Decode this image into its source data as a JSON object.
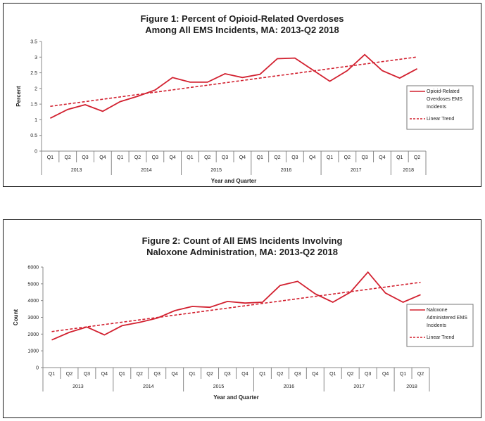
{
  "chart_data": [
    {
      "type": "line",
      "title_line1": "Figure 1: Percent of Opioid-Related Overdoses",
      "title_line2": "Among All EMS Incidents, MA: 2013-Q2 2018",
      "xlabel": "Year and Quarter",
      "ylabel": "Percent",
      "ylim": [
        0,
        3.5
      ],
      "yticks": [
        "0",
        "0.5",
        "1",
        "1.5",
        "2",
        "2.5",
        "3",
        "3.5"
      ],
      "ytick_values": [
        0,
        0.5,
        1,
        1.5,
        2,
        2.5,
        3,
        3.5
      ],
      "categories": [
        "Q1",
        "Q2",
        "Q3",
        "Q4",
        "Q1",
        "Q2",
        "Q3",
        "Q4",
        "Q1",
        "Q2",
        "Q3",
        "Q4",
        "Q1",
        "Q2",
        "Q3",
        "Q4",
        "Q1",
        "Q2",
        "Q3",
        "Q4",
        "Q1",
        "Q2"
      ],
      "years": [
        "2013",
        "2014",
        "2015",
        "2016",
        "2017",
        "2018"
      ],
      "series": [
        {
          "name": "Opioid-Related Overdoses EMS Incidents",
          "legend_lines": [
            "Opioid-Related",
            "Overdoses EMS",
            "Incidents"
          ],
          "style": "solid",
          "color": "#d2202f",
          "values": [
            1.05,
            1.33,
            1.48,
            1.27,
            1.58,
            1.75,
            1.95,
            2.35,
            2.2,
            2.2,
            2.47,
            2.35,
            2.45,
            2.95,
            2.97,
            2.6,
            2.23,
            2.57,
            3.08,
            2.57,
            2.33,
            2.63
          ]
        },
        {
          "name": "Linear Trend",
          "legend_lines": [
            "Linear Trend"
          ],
          "style": "dashed",
          "color": "#d2202f",
          "values": [
            1.43,
            1.505,
            1.58,
            1.655,
            1.73,
            1.805,
            1.88,
            1.955,
            2.03,
            2.105,
            2.18,
            2.255,
            2.33,
            2.405,
            2.48,
            2.555,
            2.63,
            2.705,
            2.78,
            2.855,
            2.93,
            3.005
          ]
        }
      ]
    },
    {
      "type": "line",
      "title_line1": "Figure 2: Count of All EMS Incidents Involving",
      "title_line2": "Naloxone Administration, MA: 2013-Q2 2018",
      "xlabel": "Year and Quarter",
      "ylabel": "Count",
      "ylim": [
        0,
        6000
      ],
      "yticks": [
        "0",
        "1000",
        "2000",
        "3000",
        "4000",
        "5000",
        "6000"
      ],
      "ytick_values": [
        0,
        1000,
        2000,
        3000,
        4000,
        5000,
        6000
      ],
      "categories": [
        "Q1",
        "Q2",
        "Q3",
        "Q4",
        "Q1",
        "Q2",
        "Q3",
        "Q4",
        "Q1",
        "Q2",
        "Q3",
        "Q4",
        "Q1",
        "Q2",
        "Q3",
        "Q4",
        "Q1",
        "Q2",
        "Q3",
        "Q4",
        "Q1",
        "Q2"
      ],
      "years": [
        "2013",
        "2014",
        "2015",
        "2016",
        "2017",
        "2018"
      ],
      "series": [
        {
          "name": "Naloxone Administered EMS Incidents",
          "legend_lines": [
            "Naloxone",
            "Administered EMS",
            "Incidents"
          ],
          "style": "solid",
          "color": "#d2202f",
          "values": [
            1650,
            2100,
            2420,
            1950,
            2500,
            2700,
            2950,
            3400,
            3650,
            3600,
            3950,
            3850,
            3900,
            4900,
            5150,
            4400,
            3900,
            4500,
            5700,
            4450,
            3900,
            4350
          ]
        },
        {
          "name": "Linear Trend",
          "legend_lines": [
            "Linear Trend"
          ],
          "style": "dashed",
          "color": "#d2202f",
          "values": [
            2150,
            2290,
            2430,
            2570,
            2710,
            2850,
            2990,
            3130,
            3270,
            3410,
            3550,
            3690,
            3830,
            3970,
            4110,
            4250,
            4390,
            4530,
            4670,
            4810,
            4950,
            5090
          ]
        }
      ]
    }
  ]
}
